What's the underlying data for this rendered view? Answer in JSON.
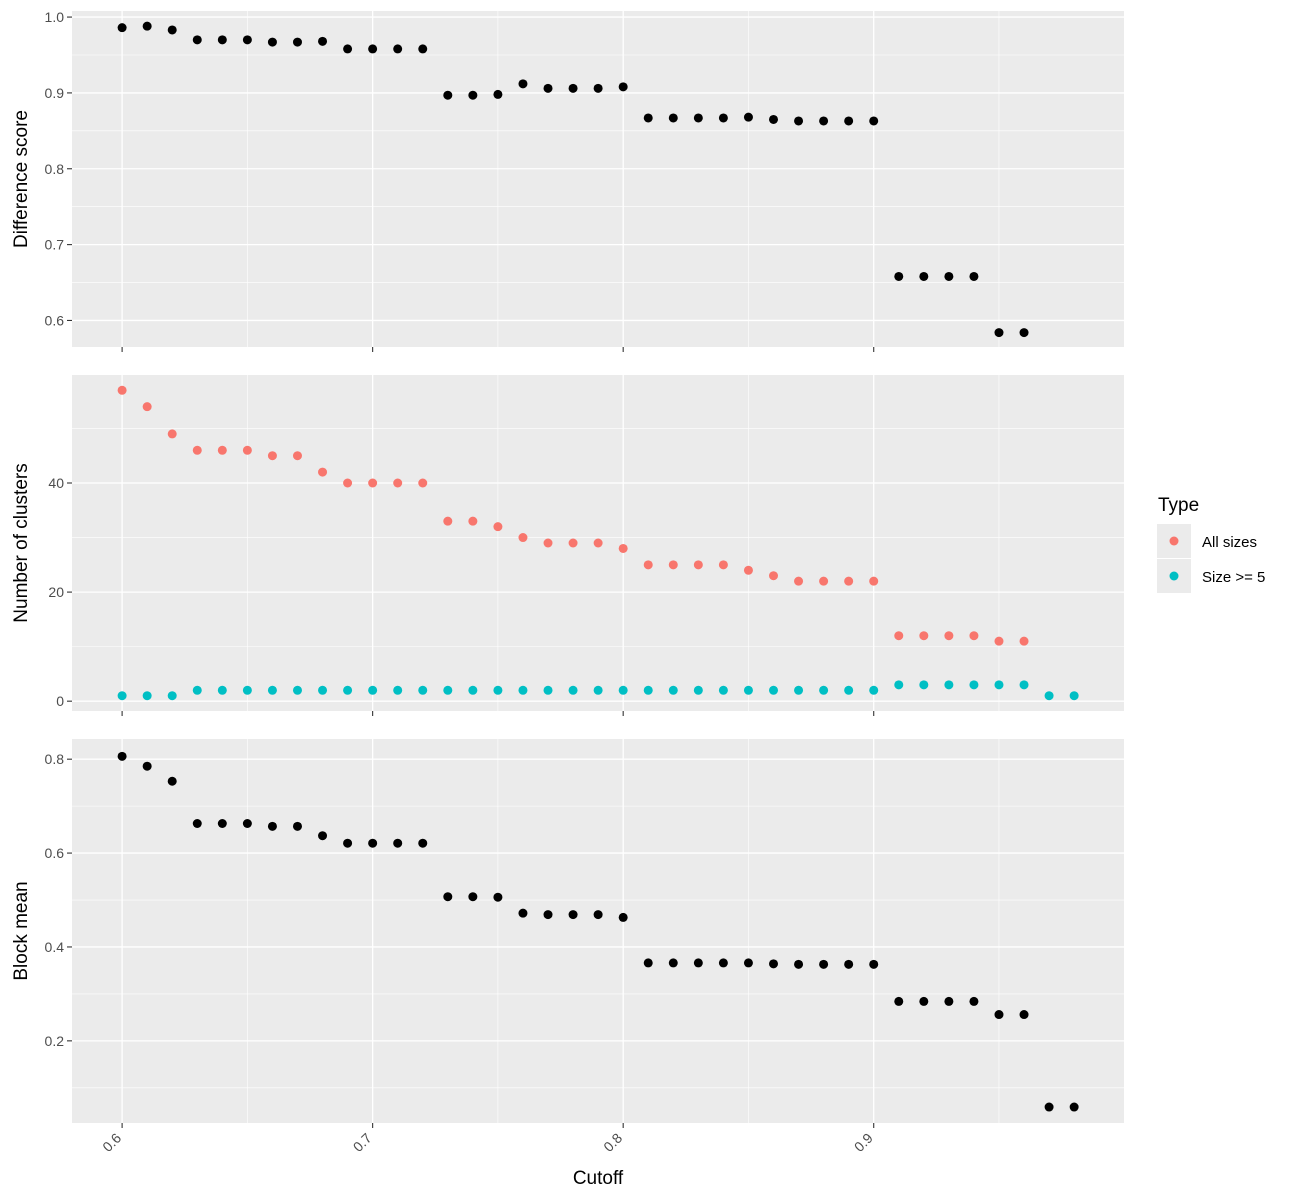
{
  "chart_data": {
    "type": "scatter",
    "x": [
      0.6,
      0.61,
      0.62,
      0.63,
      0.64,
      0.65,
      0.66,
      0.67,
      0.68,
      0.69,
      0.7,
      0.71,
      0.72,
      0.73,
      0.74,
      0.75,
      0.76,
      0.77,
      0.78,
      0.79,
      0.8,
      0.81,
      0.82,
      0.83,
      0.84,
      0.85,
      0.86,
      0.87,
      0.88,
      0.89,
      0.9,
      0.91,
      0.92,
      0.93,
      0.94,
      0.95,
      0.96,
      0.97,
      0.98
    ],
    "xlabel": "Cutoff",
    "xlim": [
      0.58,
      0.9999
    ],
    "xticks": [
      0.6,
      0.7,
      0.8,
      0.9
    ],
    "xtick_labels": [
      "0.6",
      "0.7",
      "0.8",
      "0.9"
    ],
    "grid": true,
    "panels": [
      {
        "ylabel": "Difference score",
        "ylim": [
          0.565,
          1.008
        ],
        "yticks": [
          0.6,
          0.7,
          0.8,
          0.9,
          1.0
        ],
        "ytick_labels": [
          "0.6",
          "0.7",
          "0.8",
          "0.9",
          "1.0"
        ],
        "series": [
          {
            "color": "#000000",
            "values": [
              0.986,
              0.988,
              0.983,
              0.97,
              0.97,
              0.97,
              0.967,
              0.967,
              0.968,
              0.958,
              0.958,
              0.958,
              0.958,
              0.897,
              0.897,
              0.898,
              0.912,
              0.906,
              0.906,
              0.906,
              0.908,
              0.867,
              0.867,
              0.867,
              0.867,
              0.868,
              0.865,
              0.863,
              0.863,
              0.863,
              0.863,
              0.658,
              0.658,
              0.658,
              0.658,
              0.584,
              0.584,
              null,
              null
            ]
          }
        ]
      },
      {
        "ylabel": "Number of clusters",
        "ylim": [
          -1.8,
          59.8
        ],
        "yticks": [
          0,
          20,
          40
        ],
        "ytick_labels": [
          "0",
          "20",
          "40"
        ],
        "legend": {
          "title": "Type",
          "position": "right",
          "entries": [
            {
              "label": "All sizes",
              "color": "#F8766D"
            },
            {
              "label": "Size >= 5",
              "color": "#00BFC4"
            }
          ]
        },
        "series": [
          {
            "name": "All sizes",
            "color": "#F8766D",
            "values": [
              57,
              54,
              49,
              46,
              46,
              46,
              45,
              45,
              42,
              40,
              40,
              40,
              40,
              33,
              33,
              32,
              30,
              29,
              29,
              29,
              28,
              25,
              25,
              25,
              25,
              24,
              23,
              22,
              22,
              22,
              22,
              12,
              12,
              12,
              12,
              11,
              11,
              null,
              null
            ]
          },
          {
            "name": "Size >= 5",
            "color": "#00BFC4",
            "values": [
              1,
              1,
              1,
              2,
              2,
              2,
              2,
              2,
              2,
              2,
              2,
              2,
              2,
              2,
              2,
              2,
              2,
              2,
              2,
              2,
              2,
              2,
              2,
              2,
              2,
              2,
              2,
              2,
              2,
              2,
              2,
              3,
              3,
              3,
              3,
              3,
              3,
              1,
              1
            ]
          }
        ]
      },
      {
        "ylabel": "Block mean",
        "ylim": [
          0.025,
          0.843
        ],
        "yticks": [
          0.2,
          0.4,
          0.6,
          0.8
        ],
        "ytick_labels": [
          "0.2",
          "0.4",
          "0.6",
          "0.8"
        ],
        "series": [
          {
            "color": "#000000",
            "values": [
              0.806,
              0.785,
              0.753,
              0.663,
              0.663,
              0.663,
              0.657,
              0.657,
              0.637,
              0.621,
              0.621,
              0.621,
              0.621,
              0.507,
              0.507,
              0.506,
              0.472,
              0.469,
              0.469,
              0.469,
              0.463,
              0.366,
              0.366,
              0.366,
              0.366,
              0.366,
              0.364,
              0.363,
              0.363,
              0.363,
              0.363,
              0.284,
              0.284,
              0.284,
              0.284,
              0.256,
              0.256,
              0.059,
              0.059
            ]
          }
        ]
      }
    ]
  }
}
